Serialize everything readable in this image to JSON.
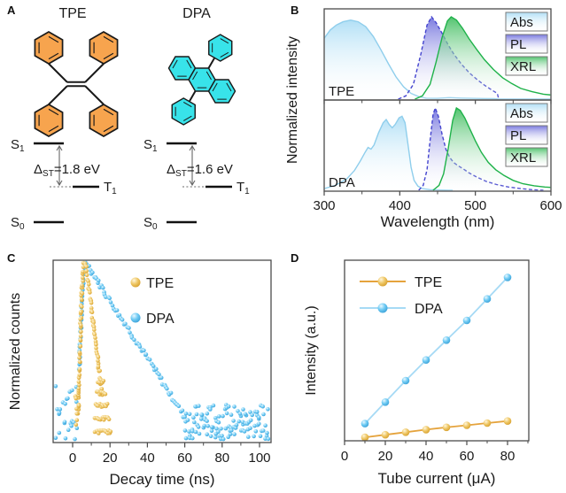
{
  "colors": {
    "tpe_orange": "#F7A44E",
    "dpa_cyan": "#38E3EA",
    "abs_fill": "#ABDDF5",
    "abs_line": "#8FCEEC",
    "pl_fill": "#6E6EDC",
    "pl_line": "#4444CF",
    "xrl_fill": "#43BE62",
    "xrl_line": "#1FB24A",
    "gold": "#EFC867",
    "gold_deep": "#D0951F",
    "gold_line": "#E5A33C",
    "sky": "#6FCBF4",
    "sky_deep": "#2E96D0",
    "sky_line": "#A6DAF5",
    "axis": "#4a4a4a",
    "legend_border": "#7a7a7a"
  },
  "panels": {
    "a": "A",
    "b": "B",
    "c": "C",
    "d": "D"
  },
  "panelA": {
    "tpe": {
      "title": "TPE",
      "delta_value": "=1.8 eV"
    },
    "dpa": {
      "title": "DPA",
      "delta_value": "=1.6 eV"
    },
    "delta_symbol": "Δ",
    "delta_subscript": "ST",
    "s_label": "S",
    "t_label": "T",
    "sub_1": "1",
    "sub_0": "0"
  },
  "chart_data": [
    {
      "panel": "B",
      "type": "area",
      "xlabel": "Wavelength (nm)",
      "ylabel": "Normalized intensity",
      "xlim": [
        300,
        600
      ],
      "ylim": [
        0,
        1
      ],
      "xticks": [
        300,
        400,
        500,
        600
      ],
      "minor_ticks": [
        350,
        450,
        550
      ],
      "legend_position": "top-right",
      "subplots": [
        {
          "label": "TPE",
          "series": [
            {
              "name": "Abs",
              "points": [
                [
                  300,
                  0.74
                ],
                [
                  308,
                  0.84
                ],
                [
                  316,
                  0.9
                ],
                [
                  325,
                  0.94
                ],
                [
                  335,
                  0.96
                ],
                [
                  345,
                  0.94
                ],
                [
                  355,
                  0.88
                ],
                [
                  365,
                  0.76
                ],
                [
                  375,
                  0.6
                ],
                [
                  385,
                  0.43
                ],
                [
                  395,
                  0.27
                ],
                [
                  405,
                  0.15
                ],
                [
                  415,
                  0.07
                ],
                [
                  425,
                  0.03
                ],
                [
                  435,
                  0.012
                ],
                [
                  450,
                  0.01
                ],
                [
                  465,
                  0.018
                ],
                [
                  480,
                  0.013
                ],
                [
                  495,
                  0.01
                ],
                [
                  510,
                  0.008
                ],
                [
                  525,
                  0.006
                ],
                [
                  531,
                  0.001
                ],
                [
                  600,
                  0
                ]
              ]
            },
            {
              "name": "PL",
              "points": [
                [
                  398,
                  0
                ],
                [
                  408,
                  0.04
                ],
                [
                  418,
                  0.18
                ],
                [
                  428,
                  0.55
                ],
                [
                  436,
                  0.9
                ],
                [
                  442,
                  1.0
                ],
                [
                  448,
                  0.93
                ],
                [
                  456,
                  0.8
                ],
                [
                  464,
                  0.66
                ],
                [
                  472,
                  0.54
                ],
                [
                  482,
                  0.42
                ],
                [
                  492,
                  0.32
                ],
                [
                  502,
                  0.24
                ],
                [
                  512,
                  0.17
                ],
                [
                  522,
                  0.11
                ],
                [
                  529,
                  0.07
                ],
                [
                  531,
                  0
                ]
              ]
            },
            {
              "name": "XRL",
              "points": [
                [
                  420,
                  0
                ],
                [
                  430,
                  0.04
                ],
                [
                  440,
                  0.18
                ],
                [
                  448,
                  0.45
                ],
                [
                  456,
                  0.75
                ],
                [
                  463,
                  0.95
                ],
                [
                  468,
                  1.0
                ],
                [
                  475,
                  0.96
                ],
                [
                  483,
                  0.86
                ],
                [
                  492,
                  0.73
                ],
                [
                  502,
                  0.6
                ],
                [
                  512,
                  0.48
                ],
                [
                  524,
                  0.36
                ],
                [
                  536,
                  0.26
                ],
                [
                  548,
                  0.19
                ],
                [
                  560,
                  0.13
                ],
                [
                  575,
                  0.09
                ],
                [
                  590,
                  0.06
                ],
                [
                  600,
                  0.05
                ]
              ]
            }
          ]
        },
        {
          "label": "DPA",
          "series": [
            {
              "name": "Abs",
              "points": [
                [
                  300,
                  0.02
                ],
                [
                  315,
                  0.06
                ],
                [
                  330,
                  0.14
                ],
                [
                  340,
                  0.24
                ],
                [
                  348,
                  0.36
                ],
                [
                  354,
                  0.46
                ],
                [
                  358,
                  0.52
                ],
                [
                  362,
                  0.5
                ],
                [
                  366,
                  0.55
                ],
                [
                  372,
                  0.7
                ],
                [
                  378,
                  0.82
                ],
                [
                  382,
                  0.86
                ],
                [
                  386,
                  0.8
                ],
                [
                  390,
                  0.76
                ],
                [
                  394,
                  0.8
                ],
                [
                  399,
                  0.88
                ],
                [
                  403,
                  0.9
                ],
                [
                  407,
                  0.82
                ],
                [
                  411,
                  0.55
                ],
                [
                  415,
                  0.28
                ],
                [
                  419,
                  0.12
                ],
                [
                  424,
                  0.05
                ],
                [
                  430,
                  0.02
                ],
                [
                  440,
                  0.008
                ],
                [
                  455,
                  0.003
                ],
                [
                  470,
                  0
                ]
              ]
            },
            {
              "name": "PL",
              "points": [
                [
                  425,
                  0
                ],
                [
                  431,
                  0.06
                ],
                [
                  436,
                  0.25
                ],
                [
                  440,
                  0.6
                ],
                [
                  444,
                  0.92
                ],
                [
                  447,
                  1.0
                ],
                [
                  451,
                  0.9
                ],
                [
                  456,
                  0.68
                ],
                [
                  461,
                  0.5
                ],
                [
                  466,
                  0.4
                ],
                [
                  471,
                  0.34
                ],
                [
                  477,
                  0.3
                ],
                [
                  484,
                  0.26
                ],
                [
                  492,
                  0.21
                ],
                [
                  502,
                  0.16
                ],
                [
                  514,
                  0.11
                ],
                [
                  528,
                  0.07
                ],
                [
                  544,
                  0.04
                ],
                [
                  560,
                  0.02
                ],
                [
                  575,
                  0.008
                ],
                [
                  590,
                  0
                ]
              ]
            },
            {
              "name": "XRL",
              "points": [
                [
                  444,
                  0
                ],
                [
                  452,
                  0.06
                ],
                [
                  458,
                  0.2
                ],
                [
                  464,
                  0.5
                ],
                [
                  470,
                  0.85
                ],
                [
                  475,
                  1.0
                ],
                [
                  480,
                  0.97
                ],
                [
                  486,
                  0.88
                ],
                [
                  493,
                  0.74
                ],
                [
                  500,
                  0.6
                ],
                [
                  508,
                  0.46
                ],
                [
                  517,
                  0.34
                ],
                [
                  527,
                  0.25
                ],
                [
                  538,
                  0.18
                ],
                [
                  550,
                  0.12
                ],
                [
                  563,
                  0.08
                ],
                [
                  578,
                  0.055
                ],
                [
                  592,
                  0.04
                ],
                [
                  600,
                  0.035
                ]
              ]
            }
          ]
        }
      ]
    },
    {
      "panel": "C",
      "type": "scatter",
      "xlabel": "Decay time (ns)",
      "ylabel": "Normalized counts",
      "xlim": [
        -9,
        106
      ],
      "ylim": [
        0.0015,
        1
      ],
      "yscale": "log",
      "xticks": [
        0,
        20,
        40,
        60,
        80,
        100
      ],
      "minor_xticks": [
        10,
        30,
        50,
        70,
        90
      ],
      "legend_position": "top-center",
      "series": [
        {
          "name": "TPE",
          "points": [
            [
              3,
              0.004
            ],
            [
              3.5,
              0.012
            ],
            [
              4,
              0.05
            ],
            [
              4.5,
              0.16
            ],
            [
              5,
              0.38
            ],
            [
              5.5,
              0.68
            ],
            [
              6,
              0.95
            ],
            [
              6.4,
              1.0
            ],
            [
              6.9,
              0.9
            ],
            [
              7.4,
              0.74
            ],
            [
              7.9,
              0.58
            ],
            [
              8.4,
              0.45
            ],
            [
              8.9,
              0.34
            ],
            [
              9.4,
              0.26
            ],
            [
              9.9,
              0.2
            ],
            [
              10.4,
              0.15
            ],
            [
              10.9,
              0.115
            ],
            [
              11.4,
              0.088
            ],
            [
              11.9,
              0.067
            ],
            [
              12.4,
              0.051
            ],
            [
              12.9,
              0.039
            ],
            [
              13.4,
              0.03
            ],
            [
              13.9,
              0.023
            ],
            [
              14.4,
              0.0175
            ],
            [
              14.9,
              0.0135
            ],
            [
              15.4,
              0.0105
            ],
            [
              15.9,
              0.008
            ]
          ],
          "rows": [
            {
              "v": 0.013,
              "t": [
                13.5,
                16.5
              ],
              "n": 6
            },
            {
              "v": 0.0085,
              "t": [
                13,
                17.5
              ],
              "n": 8
            },
            {
              "v": 0.0055,
              "t": [
                12.5,
                18.5
              ],
              "n": 10
            },
            {
              "v": 0.0034,
              "t": [
                12,
                19.5
              ],
              "n": 12
            },
            {
              "v": 0.0021,
              "t": [
                12,
                20.5
              ],
              "n": 14
            }
          ],
          "pre": {
            "t": [
              1.5,
              3.2
            ],
            "n": 6,
            "v": [
              0.002,
              0.008
            ]
          }
        },
        {
          "name": "DPA",
          "points": [
            [
              3.5,
              0.02
            ],
            [
              4.1,
              0.06
            ],
            [
              4.7,
              0.16
            ],
            [
              5.3,
              0.35
            ],
            [
              5.9,
              0.62
            ],
            [
              6.5,
              0.88
            ],
            [
              7,
              1.0
            ],
            [
              7.5,
              0.97
            ],
            [
              8,
              0.9
            ],
            [
              10,
              0.72
            ],
            [
              12,
              0.58
            ],
            [
              14,
              0.47
            ],
            [
              16,
              0.38
            ],
            [
              18,
              0.305
            ],
            [
              20,
              0.25
            ],
            [
              22,
              0.2
            ],
            [
              24,
              0.163
            ],
            [
              26,
              0.132
            ],
            [
              28,
              0.107
            ],
            [
              30,
              0.087
            ],
            [
              32,
              0.07
            ],
            [
              34,
              0.057
            ],
            [
              36,
              0.046
            ],
            [
              38,
              0.037
            ],
            [
              40,
              0.03
            ],
            [
              42,
              0.0245
            ],
            [
              44,
              0.02
            ],
            [
              46,
              0.016
            ],
            [
              48,
              0.0128
            ],
            [
              50,
              0.0104
            ],
            [
              52,
              0.0084
            ],
            [
              54,
              0.0068
            ],
            [
              56,
              0.0055
            ],
            [
              58,
              0.0045
            ],
            [
              60,
              0.0036
            ]
          ],
          "floor": {
            "t": [
              60,
              105
            ],
            "n": 120,
            "v": [
              0.0016,
              0.0056
            ]
          },
          "pre": {
            "t": [
              -9,
              3
            ],
            "n": 26,
            "v": [
              0.0016,
              0.011
            ]
          }
        }
      ]
    },
    {
      "panel": "D",
      "type": "line",
      "xlabel": "Tube current (μA)",
      "ylabel": "Intensity (a.u.)",
      "xlim": [
        0,
        90
      ],
      "ylim": [
        0,
        1.05
      ],
      "xticks": [
        0,
        20,
        40,
        60,
        80
      ],
      "minor_xticks": [
        10,
        30,
        50,
        70,
        90
      ],
      "legend_position": "top-left",
      "series": [
        {
          "name": "TPE",
          "x": [
            10,
            20,
            30,
            40,
            50,
            60,
            70,
            80
          ],
          "y": [
            0.02,
            0.035,
            0.05,
            0.065,
            0.078,
            0.09,
            0.103,
            0.115
          ]
        },
        {
          "name": "DPA",
          "x": [
            10,
            20,
            30,
            40,
            50,
            60,
            70,
            80
          ],
          "y": [
            0.1,
            0.225,
            0.35,
            0.47,
            0.585,
            0.7,
            0.825,
            0.95
          ]
        }
      ]
    }
  ]
}
